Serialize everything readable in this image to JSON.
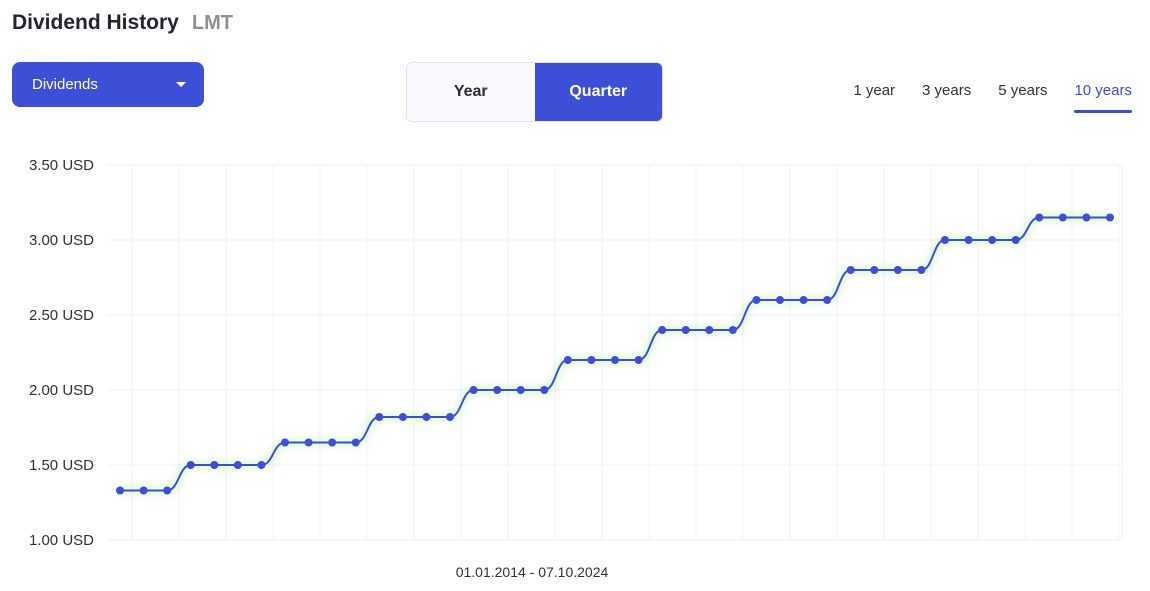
{
  "header": {
    "title": "Dividend History",
    "ticker": "LMT"
  },
  "dropdown": {
    "label": "Dividends"
  },
  "toggle": {
    "year_label": "Year",
    "quarter_label": "Quarter",
    "selected": "Quarter"
  },
  "ranges": [
    {
      "label": "1 year"
    },
    {
      "label": "3 years"
    },
    {
      "label": "5 years"
    },
    {
      "label": "10 years",
      "selected": true
    }
  ],
  "colors": {
    "accent": "#3d4fd6",
    "grid": "#edf0f7",
    "glow": "#b7f0a8"
  },
  "chart_data": {
    "type": "line",
    "x_range_label": "01.01.2014 - 07.10.2024",
    "y_ticks": [
      "1.00 USD",
      "1.50 USD",
      "2.00 USD",
      "2.50 USD",
      "3.00 USD",
      "3.50 USD"
    ],
    "ylim": [
      1.0,
      3.5
    ],
    "grid": true,
    "legend": "none",
    "series": [
      {
        "values": [
          1.33,
          1.33,
          1.33,
          1.5,
          1.5,
          1.5,
          1.5,
          1.65,
          1.65,
          1.65,
          1.65,
          1.82,
          1.82,
          1.82,
          1.82,
          2.0,
          2.0,
          2.0,
          2.0,
          2.2,
          2.2,
          2.2,
          2.2,
          2.4,
          2.4,
          2.4,
          2.4,
          2.6,
          2.6,
          2.6,
          2.6,
          2.8,
          2.8,
          2.8,
          2.8,
          3.0,
          3.0,
          3.0,
          3.0,
          3.15,
          3.15,
          3.15,
          3.15
        ]
      }
    ]
  }
}
